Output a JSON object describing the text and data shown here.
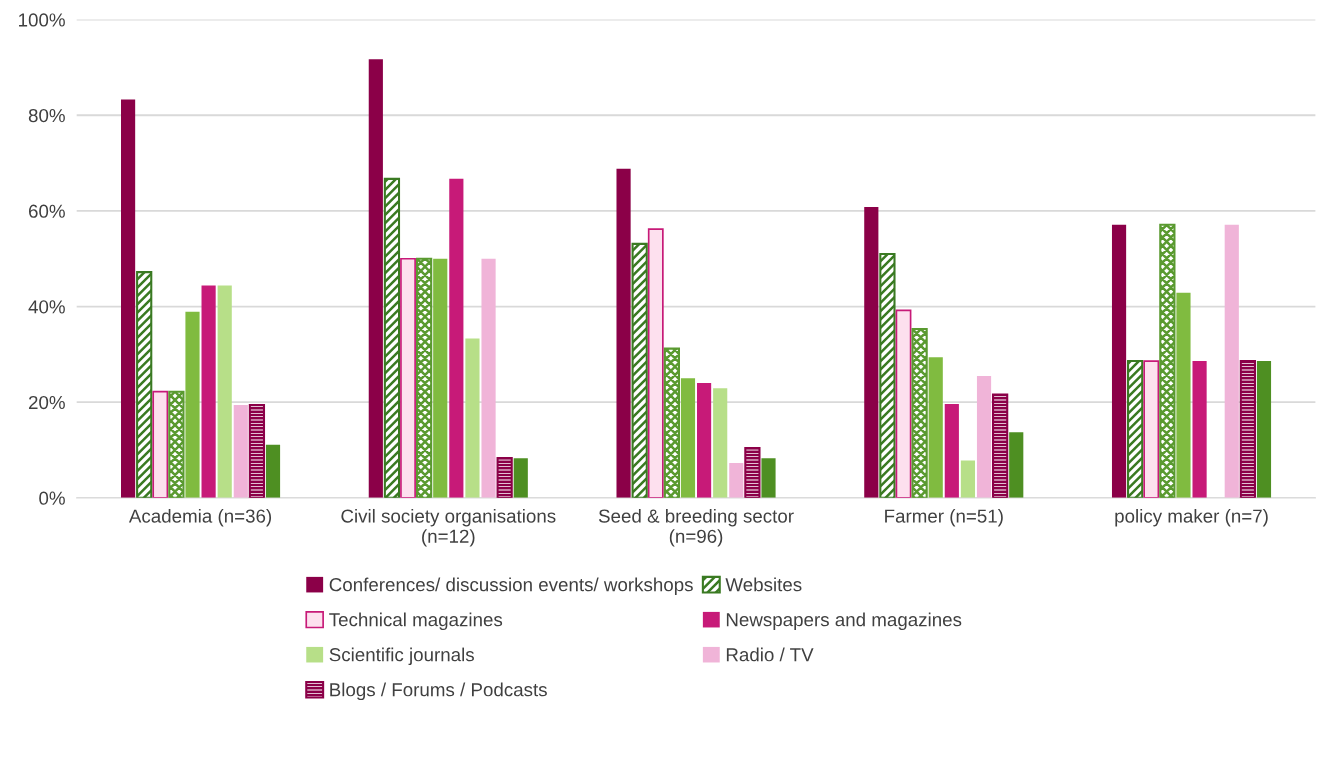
{
  "chart_data": {
    "type": "bar",
    "categories": [
      "Academia (n=36)",
      "Civil society organisations\n(n=12)",
      "Seed & breeding sector\n(n=96)",
      "Farmer (n=51)",
      "policy maker (n=7)"
    ],
    "series": [
      {
        "name": "Conferences/ discussion events/ workshops",
        "color": "#8b0048",
        "values": [
          83.3,
          91.7,
          68.8,
          60.8,
          57.1
        ]
      },
      {
        "name": "Websites",
        "color": "#3a7a22",
        "values": [
          47.2,
          66.7,
          53.1,
          51.0,
          28.6
        ]
      },
      {
        "name": "Technical magazines",
        "color": "#fde0ee",
        "values": [
          22.2,
          50.0,
          56.2,
          39.2,
          28.6
        ]
      },
      {
        "color": "#5a9a30",
        "values": [
          22.2,
          50.0,
          31.2,
          35.3,
          57.1
        ]
      },
      {
        "color": "#80bb40",
        "values": [
          38.9,
          50.0,
          25.0,
          29.4,
          42.9
        ]
      },
      {
        "name": "Newspapers and magazines",
        "color": "#c71a78",
        "values": [
          44.4,
          66.7,
          24.0,
          19.6,
          28.6
        ]
      },
      {
        "name": "Scientific journals",
        "color": "#b7df88",
        "values": [
          44.4,
          33.3,
          22.9,
          7.8,
          0
        ]
      },
      {
        "name": "Radio / TV",
        "color": "#f0b4d8",
        "values": [
          19.4,
          50.0,
          7.3,
          25.5,
          57.1
        ]
      },
      {
        "name": "Blogs / Forums / Podcasts",
        "color": "#8b0048",
        "values": [
          19.4,
          8.3,
          10.4,
          21.6,
          28.6
        ]
      },
      {
        "color": "#4e8f22",
        "values": [
          11.1,
          8.3,
          8.3,
          13.7,
          28.6
        ]
      }
    ],
    "ylim": [
      0,
      100
    ],
    "yticks": [
      {
        "value": 0,
        "label": "0%"
      },
      {
        "value": 20,
        "label": "20%"
      },
      {
        "value": 40,
        "label": "40%"
      },
      {
        "value": 60,
        "label": "60%"
      },
      {
        "value": 80,
        "label": "80%"
      },
      {
        "value": 100,
        "label": "100%"
      }
    ],
    "grid": "y",
    "legend": "bottom"
  }
}
